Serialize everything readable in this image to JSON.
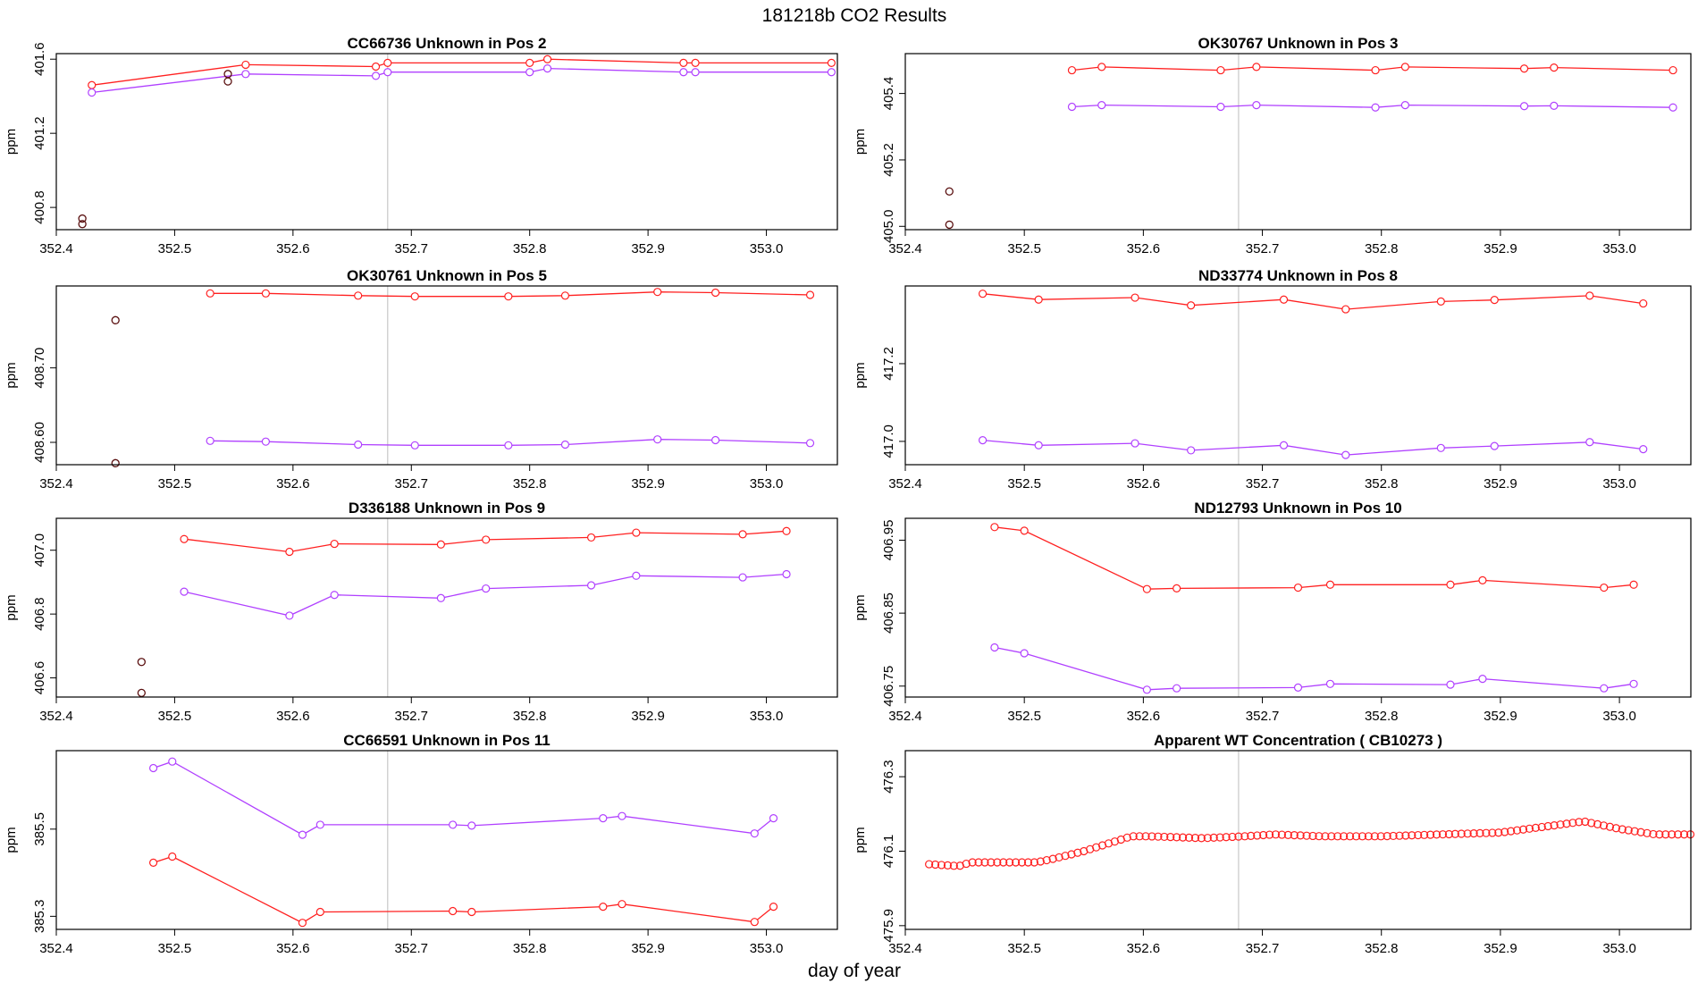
{
  "figure": {
    "title": "181218b  CO2 Results",
    "xlabel": "day of year"
  },
  "colors": {
    "red": "#ff2020",
    "purple": "#b040ff",
    "black": "#000000",
    "vline": "#c8c8c8"
  },
  "chart_data": [
    {
      "type": "line",
      "title": "CC66736    Unknown in Pos 2",
      "ylabel": "ppm",
      "xlim": [
        352.4,
        353.06
      ],
      "ylim": [
        400.68,
        401.63
      ],
      "xticks": [
        "352.4",
        "352.5",
        "352.6",
        "352.7",
        "352.8",
        "352.9",
        "353.0"
      ],
      "yticks": [
        "400.8",
        "401.2",
        "401.6"
      ],
      "ytick_values": [
        400.8,
        401.2,
        401.6
      ],
      "vlines": [
        352.68,
        353.06
      ],
      "series": [
        {
          "name": "red",
          "color": "red",
          "x": [
            352.43,
            352.56,
            352.67,
            352.68,
            352.8,
            352.815,
            352.93,
            352.94,
            353.055
          ],
          "y": [
            401.46,
            401.57,
            401.56,
            401.58,
            401.58,
            401.6,
            401.58,
            401.58,
            401.58
          ]
        },
        {
          "name": "purple",
          "color": "purple",
          "x": [
            352.43,
            352.56,
            352.67,
            352.68,
            352.8,
            352.815,
            352.93,
            352.94,
            353.055
          ],
          "y": [
            401.42,
            401.52,
            401.51,
            401.53,
            401.53,
            401.55,
            401.53,
            401.53,
            401.53
          ]
        }
      ],
      "points": [
        {
          "x": 352.422,
          "y": 400.74
        },
        {
          "x": 352.422,
          "y": 400.71
        },
        {
          "x": 352.545,
          "y": 401.52
        },
        {
          "x": 352.545,
          "y": 401.48
        }
      ]
    },
    {
      "type": "line",
      "title": "OK30767    Unknown in Pos 3",
      "ylabel": "ppm",
      "xlim": [
        352.4,
        353.06
      ],
      "ylim": [
        404.99,
        405.52
      ],
      "xticks": [
        "352.4",
        "352.5",
        "352.6",
        "352.7",
        "352.8",
        "352.9",
        "353.0"
      ],
      "yticks": [
        "405.0",
        "405.2",
        "405.4"
      ],
      "ytick_values": [
        405.0,
        405.2,
        405.4
      ],
      "vlines": [
        352.68,
        353.06
      ],
      "series": [
        {
          "name": "red",
          "color": "red",
          "x": [
            352.54,
            352.565,
            352.665,
            352.695,
            352.795,
            352.82,
            352.92,
            352.945,
            353.045
          ],
          "y": [
            405.47,
            405.48,
            405.47,
            405.48,
            405.47,
            405.48,
            405.475,
            405.478,
            405.47
          ]
        },
        {
          "name": "purple",
          "color": "purple",
          "x": [
            352.54,
            352.565,
            352.665,
            352.695,
            352.795,
            352.82,
            352.92,
            352.945,
            353.045
          ],
          "y": [
            405.36,
            405.365,
            405.36,
            405.365,
            405.358,
            405.365,
            405.362,
            405.363,
            405.358
          ]
        }
      ],
      "points": [
        {
          "x": 352.437,
          "y": 405.105
        },
        {
          "x": 352.437,
          "y": 405.005
        }
      ]
    },
    {
      "type": "line",
      "title": "OK30761    Unknown in Pos 5",
      "ylabel": "ppm",
      "xlim": [
        352.4,
        353.06
      ],
      "ylim": [
        408.57,
        408.81
      ],
      "xticks": [
        "352.4",
        "352.5",
        "352.6",
        "352.7",
        "352.8",
        "352.9",
        "353.0"
      ],
      "yticks": [
        "408.60",
        "408.70"
      ],
      "ytick_values": [
        408.6,
        408.7
      ],
      "vlines": [
        352.68,
        353.06
      ],
      "series": [
        {
          "name": "red",
          "color": "red",
          "x": [
            352.53,
            352.577,
            352.655,
            352.703,
            352.782,
            352.83,
            352.908,
            352.957,
            353.037
          ],
          "y": [
            408.8,
            408.8,
            408.797,
            408.796,
            408.796,
            408.797,
            408.802,
            408.801,
            408.798
          ]
        },
        {
          "name": "purple",
          "color": "purple",
          "x": [
            352.53,
            352.577,
            352.655,
            352.703,
            352.782,
            352.83,
            352.908,
            352.957,
            353.037
          ],
          "y": [
            408.602,
            408.601,
            408.597,
            408.596,
            408.596,
            408.597,
            408.604,
            408.603,
            408.599
          ]
        }
      ],
      "points": [
        {
          "x": 352.45,
          "y": 408.764
        },
        {
          "x": 352.45,
          "y": 408.572
        }
      ]
    },
    {
      "type": "line",
      "title": "ND33774    Unknown in Pos 8",
      "ylabel": "ppm",
      "xlim": [
        352.4,
        353.06
      ],
      "ylim": [
        416.94,
        417.4
      ],
      "xticks": [
        "352.4",
        "352.5",
        "352.6",
        "352.7",
        "352.8",
        "352.9",
        "353.0"
      ],
      "yticks": [
        "417.0",
        "417.2"
      ],
      "ytick_values": [
        417.0,
        417.2
      ],
      "vlines": [
        352.68,
        353.06
      ],
      "series": [
        {
          "name": "red",
          "color": "red",
          "x": [
            352.465,
            352.512,
            352.593,
            352.64,
            352.718,
            352.77,
            352.85,
            352.895,
            352.975,
            353.02
          ],
          "y": [
            417.38,
            417.365,
            417.37,
            417.35,
            417.365,
            417.34,
            417.36,
            417.364,
            417.375,
            417.355
          ]
        },
        {
          "name": "purple",
          "color": "purple",
          "x": [
            352.465,
            352.512,
            352.593,
            352.64,
            352.718,
            352.77,
            352.85,
            352.895,
            352.975,
            353.02
          ],
          "y": [
            417.003,
            416.99,
            416.995,
            416.977,
            416.99,
            416.965,
            416.983,
            416.988,
            416.998,
            416.98
          ]
        }
      ],
      "points": []
    },
    {
      "type": "line",
      "title": "D336188    Unknown in Pos 9",
      "ylabel": "ppm",
      "xlim": [
        352.4,
        353.06
      ],
      "ylim": [
        406.54,
        407.1
      ],
      "xticks": [
        "352.4",
        "352.5",
        "352.6",
        "352.7",
        "352.8",
        "352.9",
        "353.0"
      ],
      "yticks": [
        "406.6",
        "406.8",
        "407.0"
      ],
      "ytick_values": [
        406.6,
        406.8,
        407.0
      ],
      "vlines": [
        352.68,
        353.06
      ],
      "series": [
        {
          "name": "red",
          "color": "red",
          "x": [
            352.508,
            352.597,
            352.635,
            352.725,
            352.763,
            352.852,
            352.89,
            352.98,
            353.017
          ],
          "y": [
            407.035,
            406.995,
            407.02,
            407.018,
            407.033,
            407.04,
            407.055,
            407.05,
            407.06
          ]
        },
        {
          "name": "purple",
          "color": "purple",
          "x": [
            352.508,
            352.597,
            352.635,
            352.725,
            352.763,
            352.852,
            352.89,
            352.98,
            353.017
          ],
          "y": [
            406.87,
            406.795,
            406.86,
            406.85,
            406.88,
            406.89,
            406.92,
            406.915,
            406.925
          ]
        }
      ],
      "points": [
        {
          "x": 352.472,
          "y": 406.65
        },
        {
          "x": 352.472,
          "y": 406.553
        }
      ]
    },
    {
      "type": "line",
      "title": "ND12793    Unknown in Pos 10",
      "ylabel": "ppm",
      "xlim": [
        352.4,
        353.06
      ],
      "ylim": [
        406.735,
        406.98
      ],
      "xticks": [
        "352.4",
        "352.5",
        "352.6",
        "352.7",
        "352.8",
        "352.9",
        "353.0"
      ],
      "yticks": [
        "406.75",
        "406.85",
        "406.95"
      ],
      "ytick_values": [
        406.75,
        406.85,
        406.95
      ],
      "vlines": [
        352.68,
        353.06
      ],
      "series": [
        {
          "name": "red",
          "color": "red",
          "x": [
            352.475,
            352.5,
            352.603,
            352.628,
            352.73,
            352.757,
            352.858,
            352.885,
            352.987,
            353.012
          ],
          "y": [
            406.968,
            406.963,
            406.883,
            406.884,
            406.885,
            406.889,
            406.889,
            406.895,
            406.885,
            406.889
          ]
        },
        {
          "name": "purple",
          "color": "purple",
          "x": [
            352.475,
            352.5,
            352.603,
            352.628,
            352.73,
            352.757,
            352.858,
            352.885,
            352.987,
            353.012
          ],
          "y": [
            406.803,
            406.795,
            406.745,
            406.747,
            406.748,
            406.753,
            406.752,
            406.76,
            406.747,
            406.753
          ]
        }
      ],
      "points": []
    },
    {
      "type": "line",
      "title": "CC66591    Unknown in Pos 11",
      "ylabel": "ppm",
      "xlim": [
        352.4,
        353.06
      ],
      "ylim": [
        385.27,
        385.68
      ],
      "xticks": [
        "352.4",
        "352.5",
        "352.6",
        "352.7",
        "352.8",
        "352.9",
        "353.0"
      ],
      "yticks": [
        "385.3",
        "385.5"
      ],
      "ytick_values": [
        385.3,
        385.5
      ],
      "vlines": [
        352.68,
        353.06
      ],
      "series": [
        {
          "name": "purple",
          "color": "purple",
          "x": [
            352.482,
            352.498,
            352.608,
            352.623,
            352.735,
            352.751,
            352.862,
            352.878,
            352.99,
            353.006
          ],
          "y": [
            385.64,
            385.655,
            385.487,
            385.51,
            385.51,
            385.508,
            385.525,
            385.53,
            385.49,
            385.525
          ]
        },
        {
          "name": "red",
          "color": "red",
          "x": [
            352.482,
            352.498,
            352.608,
            352.623,
            352.735,
            352.751,
            352.862,
            352.878,
            352.99,
            353.006
          ],
          "y": [
            385.423,
            385.437,
            385.285,
            385.31,
            385.312,
            385.31,
            385.322,
            385.328,
            385.287,
            385.322
          ]
        }
      ],
      "points": []
    },
    {
      "type": "scatter",
      "title": "Apparent WT Concentration ( CB10273 )",
      "ylabel": "ppm",
      "xlim": [
        352.4,
        353.06
      ],
      "ylim": [
        475.89,
        476.37
      ],
      "xticks": [
        "352.4",
        "352.5",
        "352.6",
        "352.7",
        "352.8",
        "352.9",
        "353.0"
      ],
      "yticks": [
        "475.9",
        "476.1",
        "476.3"
      ],
      "ytick_values": [
        475.9,
        476.1,
        476.3
      ],
      "vlines": [
        352.68,
        353.06
      ],
      "series": [
        {
          "name": "red",
          "color": "red",
          "points_only": true,
          "knots_x": [
            352.42,
            352.445,
            352.455,
            352.51,
            352.525,
            352.55,
            352.59,
            352.605,
            352.65,
            352.685,
            352.71,
            352.75,
            352.8,
            352.85,
            352.9,
            352.97,
            353.0,
            353.03,
            353.06
          ],
          "knots_y": [
            476.065,
            476.06,
            476.07,
            476.07,
            476.08,
            476.1,
            476.14,
            476.14,
            476.135,
            476.14,
            476.145,
            476.14,
            476.14,
            476.145,
            476.15,
            476.18,
            476.16,
            476.145,
            476.145
          ],
          "step": 0.0052
        }
      ],
      "points": []
    }
  ]
}
